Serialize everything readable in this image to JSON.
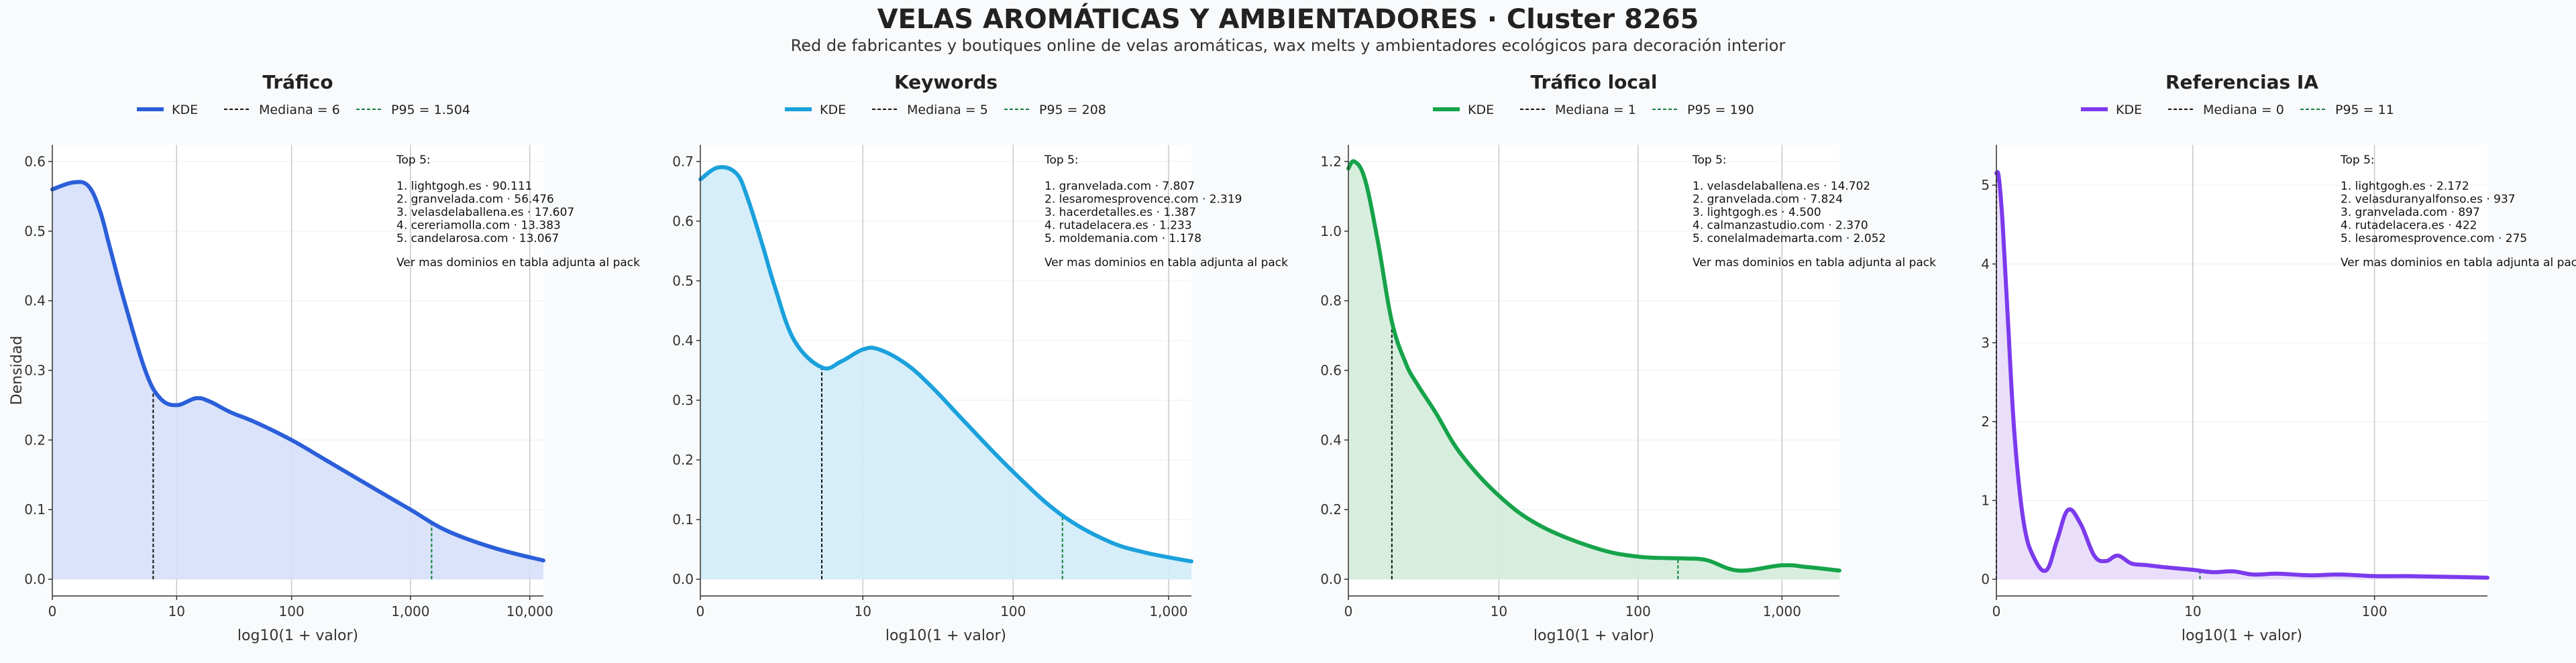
{
  "header": {
    "title": "VELAS AROMÁTICAS Y AMBIENTADORES · Cluster 8265",
    "subtitle": "Red de fabricantes y boutiques online de velas aromáticas, wax melts y ambientadores ecológicos para decoración interior"
  },
  "colors": {
    "median_line": "#111111",
    "p95_line": "#15803d",
    "grid": "#c8c8c8"
  },
  "chart_data": [
    {
      "type": "area",
      "title": "Tráfico",
      "xlabel": "log10(1 + valor)",
      "ylabel": "Densidad",
      "x_scale": "log10(1+x)",
      "xlim": [
        0,
        13000
      ],
      "ylim": [
        0,
        0.6
      ],
      "x_ticks": [
        {
          "value": 0,
          "label": "0"
        },
        {
          "value": 10,
          "label": "10"
        },
        {
          "value": 100,
          "label": "100"
        },
        {
          "value": 1000,
          "label": "1,000"
        },
        {
          "value": 10000,
          "label": "10,000"
        }
      ],
      "y_ticks": [
        {
          "value": 0,
          "label": "0.0"
        },
        {
          "value": 0.1,
          "label": "0.1"
        },
        {
          "value": 0.2,
          "label": "0.2"
        },
        {
          "value": 0.3,
          "label": "0.3"
        },
        {
          "value": 0.4,
          "label": "0.4"
        },
        {
          "value": 0.5,
          "label": "0.5"
        },
        {
          "value": 0.6,
          "label": "0.6"
        }
      ],
      "color": "#2b5fd9",
      "fill": "#d6e0fa",
      "legend": {
        "kde": "KDE",
        "median": "Mediana = 6",
        "p95": "P95 = 1.504"
      },
      "median": 6,
      "p95": 1504,
      "curve": {
        "x": [
          0,
          0.5,
          1,
          1.5,
          2,
          3,
          5,
          7,
          10,
          15,
          20,
          30,
          50,
          100,
          200,
          500,
          1000,
          2000,
          5000,
          13000
        ],
        "y": [
          0.56,
          0.57,
          0.565,
          0.53,
          0.48,
          0.4,
          0.3,
          0.26,
          0.25,
          0.26,
          0.255,
          0.24,
          0.225,
          0.2,
          0.17,
          0.13,
          0.1,
          0.07,
          0.045,
          0.027
        ]
      },
      "top5": {
        "heading": "Top 5:",
        "items": [
          "1. lightgogh.es · 90.111",
          "2. granvelada.com · 56.476",
          "3. velasdelaballena.es · 17.607",
          "4. cereriamolla.com · 13.383",
          "5. candelarosa.com · 13.067"
        ],
        "footer": "Ver mas dominios en tabla adjunta al pack"
      }
    },
    {
      "type": "area",
      "title": "Keywords",
      "xlabel": "log10(1 + valor)",
      "ylabel": "",
      "x_scale": "log10(1+x)",
      "xlim": [
        0,
        1400
      ],
      "ylim": [
        0,
        0.7
      ],
      "x_ticks": [
        {
          "value": 0,
          "label": "0"
        },
        {
          "value": 10,
          "label": "10"
        },
        {
          "value": 100,
          "label": "100"
        },
        {
          "value": 1000,
          "label": "1,000"
        }
      ],
      "y_ticks": [
        {
          "value": 0,
          "label": "0.0"
        },
        {
          "value": 0.1,
          "label": "0.1"
        },
        {
          "value": 0.2,
          "label": "0.2"
        },
        {
          "value": 0.3,
          "label": "0.3"
        },
        {
          "value": 0.4,
          "label": "0.4"
        },
        {
          "value": 0.5,
          "label": "0.5"
        },
        {
          "value": 0.6,
          "label": "0.6"
        },
        {
          "value": 0.7,
          "label": "0.7"
        }
      ],
      "color": "#1ba1dc",
      "fill": "#d2ecf8",
      "legend": {
        "kde": "KDE",
        "median": "Mediana = 5",
        "p95": "P95 = 208"
      },
      "median": 5,
      "p95": 208,
      "curve": {
        "x": [
          0,
          0.3,
          0.7,
          1,
          1.5,
          2,
          3,
          5,
          7,
          10,
          13,
          20,
          30,
          50,
          100,
          200,
          400,
          700,
          1400
        ],
        "y": [
          0.67,
          0.69,
          0.68,
          0.64,
          0.56,
          0.49,
          0.4,
          0.355,
          0.365,
          0.385,
          0.385,
          0.36,
          0.32,
          0.26,
          0.18,
          0.11,
          0.065,
          0.045,
          0.03
        ]
      },
      "top5": {
        "heading": "Top 5:",
        "items": [
          "1. granvelada.com · 7.807",
          "2. lesaromesprovence.com · 2.319",
          "3. hacerdetalles.es · 1.387",
          "4. rutadelacera.es · 1.233",
          "5. moldemania.com · 1.178"
        ],
        "footer": "Ver mas dominios en tabla adjunta al pack"
      }
    },
    {
      "type": "area",
      "title": "Tráfico local",
      "xlabel": "log10(1 + valor)",
      "ylabel": "",
      "x_scale": "log10(1+x)",
      "xlim": [
        0,
        2500
      ],
      "ylim": [
        0,
        1.2
      ],
      "x_ticks": [
        {
          "value": 0,
          "label": "0"
        },
        {
          "value": 10,
          "label": "10"
        },
        {
          "value": 100,
          "label": "100"
        },
        {
          "value": 1000,
          "label": "1,000"
        }
      ],
      "y_ticks": [
        {
          "value": 0,
          "label": "0.0"
        },
        {
          "value": 0.2,
          "label": "0.2"
        },
        {
          "value": 0.4,
          "label": "0.4"
        },
        {
          "value": 0.6,
          "label": "0.6"
        },
        {
          "value": 0.8,
          "label": "0.8"
        },
        {
          "value": 1.0,
          "label": "1.0"
        },
        {
          "value": 1.2,
          "label": "1.2"
        }
      ],
      "color": "#16a34a",
      "fill": "#d3ecda",
      "legend": {
        "kde": "KDE",
        "median": "Mediana = 1",
        "p95": "P95 = 190"
      },
      "median": 1,
      "p95": 190,
      "curve": {
        "x": [
          0,
          0.1,
          0.3,
          0.6,
          1,
          1.5,
          2,
          3,
          5,
          10,
          20,
          50,
          100,
          200,
          300,
          500,
          1000,
          1500,
          2500
        ],
        "y": [
          1.18,
          1.2,
          1.15,
          0.97,
          0.74,
          0.62,
          0.56,
          0.48,
          0.36,
          0.24,
          0.155,
          0.09,
          0.065,
          0.06,
          0.055,
          0.025,
          0.04,
          0.035,
          0.025
        ]
      },
      "top5": {
        "heading": "Top 5:",
        "items": [
          "1. velasdelaballena.es · 14.702",
          "2. granvelada.com · 7.824",
          "3. lightgogh.es · 4.500",
          "4. calmanzastudio.com · 2.370",
          "5. conelalmademarta.com · 2.052"
        ],
        "footer": "Ver mas dominios en tabla adjunta al pack"
      }
    },
    {
      "type": "area",
      "title": "Referencias IA",
      "xlabel": "log10(1 + valor)",
      "ylabel": "",
      "x_scale": "log10(1+x)",
      "xlim": [
        0,
        400
      ],
      "ylim": [
        0,
        5.3
      ],
      "x_ticks": [
        {
          "value": 0,
          "label": "0"
        },
        {
          "value": 10,
          "label": "10"
        },
        {
          "value": 100,
          "label": "100"
        }
      ],
      "y_ticks": [
        {
          "value": 0,
          "label": "0"
        },
        {
          "value": 1,
          "label": "1"
        },
        {
          "value": 2,
          "label": "2"
        },
        {
          "value": 3,
          "label": "3"
        },
        {
          "value": 4,
          "label": "4"
        },
        {
          "value": 5,
          "label": "5"
        }
      ],
      "color": "#7c3aed",
      "fill": "#e8dcfb",
      "legend": {
        "kde": "KDE",
        "median": "Mediana = 0",
        "p95": "P95 = 11"
      },
      "median": 0,
      "p95": 11,
      "curve": {
        "x": [
          0,
          0.03,
          0.08,
          0.15,
          0.25,
          0.4,
          0.6,
          0.85,
          1.1,
          1.4,
          1.8,
          2.3,
          2.8,
          3.4,
          4.2,
          5.2,
          7,
          10,
          13,
          17,
          22,
          30,
          45,
          65,
          100,
          150,
          250,
          400
        ],
        "y": [
          5.15,
          5.1,
          4.5,
          3.3,
          1.8,
          0.7,
          0.25,
          0.12,
          0.5,
          0.88,
          0.7,
          0.3,
          0.23,
          0.3,
          0.2,
          0.18,
          0.15,
          0.12,
          0.09,
          0.1,
          0.06,
          0.07,
          0.05,
          0.06,
          0.04,
          0.04,
          0.03,
          0.02
        ]
      },
      "top5": {
        "heading": "Top 5:",
        "items": [
          "1. lightgogh.es · 2.172",
          "2. velasduranyalfonso.es · 937",
          "3. granvelada.com · 897",
          "4. rutadelacera.es · 422",
          "5. lesaromesprovence.com · 275"
        ],
        "footer": "Ver mas dominios en tabla adjunta al pack"
      }
    }
  ]
}
